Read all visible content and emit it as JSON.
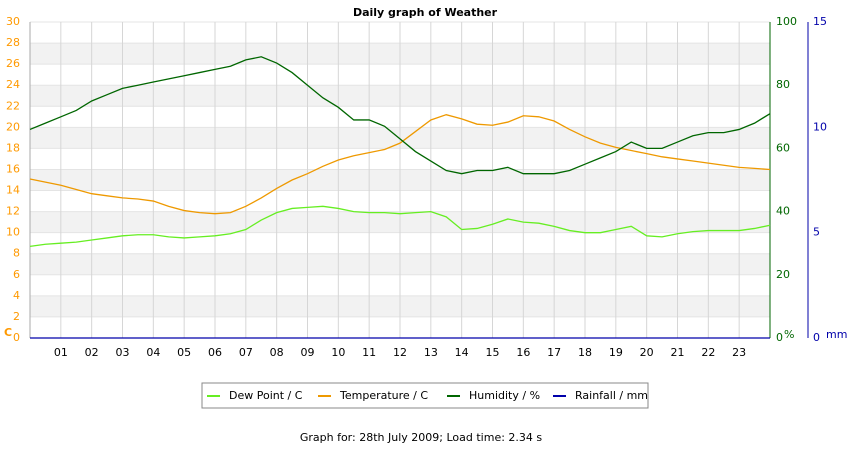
{
  "chart_data": {
    "type": "line",
    "title": "Daily graph of Weather",
    "footer": "Graph for: 28th July 2009; Load time: 2.34 s",
    "y_label": "C",
    "y2_label": "%",
    "y3_label": "mm",
    "xlim": [
      0,
      24
    ],
    "xticks": [
      {
        "value": 1,
        "label": "01"
      },
      {
        "value": 2,
        "label": "02"
      },
      {
        "value": 3,
        "label": "03"
      },
      {
        "value": 4,
        "label": "04"
      },
      {
        "value": 5,
        "label": "05"
      },
      {
        "value": 6,
        "label": "06"
      },
      {
        "value": 7,
        "label": "07"
      },
      {
        "value": 8,
        "label": "08"
      },
      {
        "value": 9,
        "label": "09"
      },
      10,
      11,
      12,
      13,
      14,
      15,
      16,
      17,
      18,
      19,
      20,
      21,
      22,
      23
    ],
    "ylim": [
      0,
      30
    ],
    "yticks": [
      0,
      2,
      4,
      6,
      8,
      10,
      12,
      14,
      16,
      18,
      20,
      22,
      24,
      26,
      28,
      30
    ],
    "y2lim": [
      0,
      100
    ],
    "y2ticks": [
      0,
      20,
      40,
      60,
      80,
      100
    ],
    "y3lim": [
      0,
      15
    ],
    "y3ticks": [
      0,
      5,
      10,
      15
    ],
    "grid": true,
    "axis_colors": {
      "y": "#ff9900",
      "y2": "#006600",
      "y3": "#0000aa"
    },
    "x": [
      0,
      0.5,
      1,
      1.5,
      2,
      2.5,
      3,
      3.5,
      4,
      4.5,
      5,
      5.5,
      6,
      6.5,
      7,
      7.5,
      8,
      8.5,
      9,
      9.5,
      10,
      10.5,
      11,
      11.5,
      12,
      12.5,
      13,
      13.5,
      14,
      14.5,
      15,
      15.5,
      16,
      16.5,
      17,
      17.5,
      18,
      18.5,
      19,
      19.5,
      20,
      20.5,
      21,
      21.5,
      22,
      22.5,
      23,
      23.5,
      24
    ],
    "series": [
      {
        "name": "Dew Point / C",
        "color": "#66ee22",
        "axis": "y",
        "values": [
          8.7,
          8.9,
          9.0,
          9.1,
          9.3,
          9.5,
          9.7,
          9.8,
          9.8,
          9.6,
          9.5,
          9.6,
          9.7,
          9.9,
          10.3,
          11.2,
          11.9,
          12.3,
          12.4,
          12.5,
          12.3,
          12.0,
          11.9,
          11.9,
          11.8,
          11.9,
          12.0,
          11.5,
          10.3,
          10.4,
          10.8,
          11.3,
          11.0,
          10.9,
          10.6,
          10.2,
          10.0,
          10.0,
          10.3,
          10.6,
          9.7,
          9.6,
          9.9,
          10.1,
          10.2,
          10.2,
          10.2,
          10.4,
          10.7
        ]
      },
      {
        "name": "Temperature / C",
        "color": "#ee9900",
        "axis": "y",
        "values": [
          15.1,
          14.8,
          14.5,
          14.1,
          13.7,
          13.5,
          13.3,
          13.2,
          13.0,
          12.5,
          12.1,
          11.9,
          11.8,
          11.9,
          12.5,
          13.3,
          14.2,
          15.0,
          15.6,
          16.3,
          16.9,
          17.3,
          17.6,
          17.9,
          18.5,
          19.6,
          20.7,
          21.2,
          20.8,
          20.3,
          20.2,
          20.5,
          21.1,
          21.0,
          20.6,
          19.8,
          19.1,
          18.5,
          18.1,
          17.8,
          17.5,
          17.2,
          17.0,
          16.8,
          16.6,
          16.4,
          16.2,
          16.1,
          16.0
        ]
      },
      {
        "name": "Humidity / %",
        "color": "#006600",
        "axis": "y2",
        "values": [
          66,
          68,
          70,
          72,
          75,
          77,
          79,
          80,
          81,
          82,
          83,
          84,
          85,
          86,
          88,
          89,
          87,
          84,
          80,
          76,
          73,
          69,
          69,
          67,
          63,
          59,
          56,
          53,
          52,
          53,
          53,
          54,
          52,
          52,
          52,
          53,
          55,
          57,
          59,
          62,
          60,
          60,
          62,
          64,
          65,
          65,
          66,
          68,
          71
        ]
      },
      {
        "name": "Rainfall / mm",
        "color": "#0000aa",
        "axis": "y3",
        "values": [
          0,
          0,
          0,
          0,
          0,
          0,
          0,
          0,
          0,
          0,
          0,
          0,
          0,
          0,
          0,
          0,
          0,
          0,
          0,
          0,
          0,
          0,
          0,
          0,
          0,
          0,
          0,
          0,
          0,
          0,
          0,
          0,
          0,
          0,
          0,
          0,
          0,
          0,
          0,
          0,
          0,
          0,
          0,
          0,
          0,
          0,
          0,
          0,
          0
        ]
      }
    ]
  }
}
